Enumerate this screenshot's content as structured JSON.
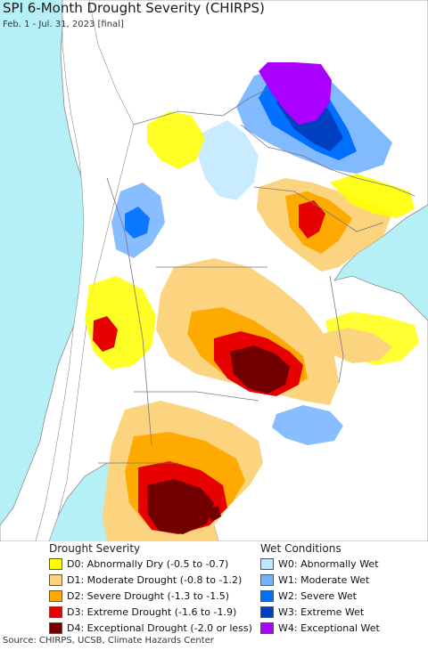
{
  "header": {
    "title": "SPI 6-Month Drought Severity (CHIRPS)",
    "subtitle": "Feb. 1 - Jul. 31, 2023 [final]"
  },
  "legend": {
    "drought_heading": "Drought Severity",
    "wet_heading": "Wet Conditions",
    "drought_items": [
      {
        "label": "D0: Abnormally Dry (-0.5 to -0.7)",
        "color": "#ffff00"
      },
      {
        "label": "D1: Moderate Drought (-0.8 to -1.2)",
        "color": "#fcd37f"
      },
      {
        "label": "D2: Severe Drought (-1.3 to -1.5)",
        "color": "#ffaa00"
      },
      {
        "label": "D3: Extreme Drought (-1.6 to -1.9)",
        "color": "#e60000"
      },
      {
        "label": "D4: Exceptional Drought (-2.0 or less)",
        "color": "#730000"
      }
    ],
    "wet_items": [
      {
        "label": "W0: Abnormally Wet",
        "color": "#bee8ff"
      },
      {
        "label": "W1: Moderate Wet",
        "color": "#73b2ff"
      },
      {
        "label": "W2: Severe Wet",
        "color": "#0070ff"
      },
      {
        "label": "W3: Extreme Wet",
        "color": "#0040c0"
      },
      {
        "label": "W4: Exceptional Wet",
        "color": "#aa00ff"
      }
    ]
  },
  "map": {
    "ocean_color": "#b4f0f6",
    "land_color": "#ffffff",
    "border_color": "#8c8c8c"
  },
  "footer": {
    "source": "Source: CHIRPS, UCSB, Climate Hazards Center"
  }
}
